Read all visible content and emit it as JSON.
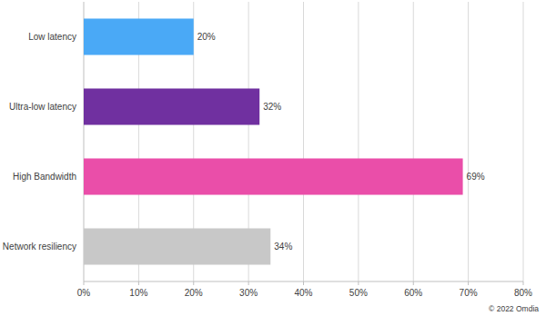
{
  "chart_data": {
    "type": "bar",
    "orientation": "horizontal",
    "categories": [
      "Low latency",
      "Ultra-low latency",
      "High Bandwidth",
      "Network resiliency"
    ],
    "values": [
      20,
      32,
      69,
      34
    ],
    "value_labels": [
      "20%",
      "32%",
      "69%",
      "34%"
    ],
    "colors": [
      "#4aa9f6",
      "#7030a0",
      "#ea4ea9",
      "#c8c8c8"
    ],
    "xlim": [
      0,
      80
    ],
    "xticks": [
      {
        "value": 0,
        "label": "0%"
      },
      {
        "value": 10,
        "label": "10%"
      },
      {
        "value": 20,
        "label": "20%"
      },
      {
        "value": 30,
        "label": "30%"
      },
      {
        "value": 40,
        "label": "40%"
      },
      {
        "value": 50,
        "label": "50%"
      },
      {
        "value": 60,
        "label": "60%"
      },
      {
        "value": 70,
        "label": "70%"
      },
      {
        "value": 80,
        "label": "80%"
      }
    ],
    "grid": true,
    "data_labels": true,
    "annotation": "© 2022 Omdia"
  }
}
